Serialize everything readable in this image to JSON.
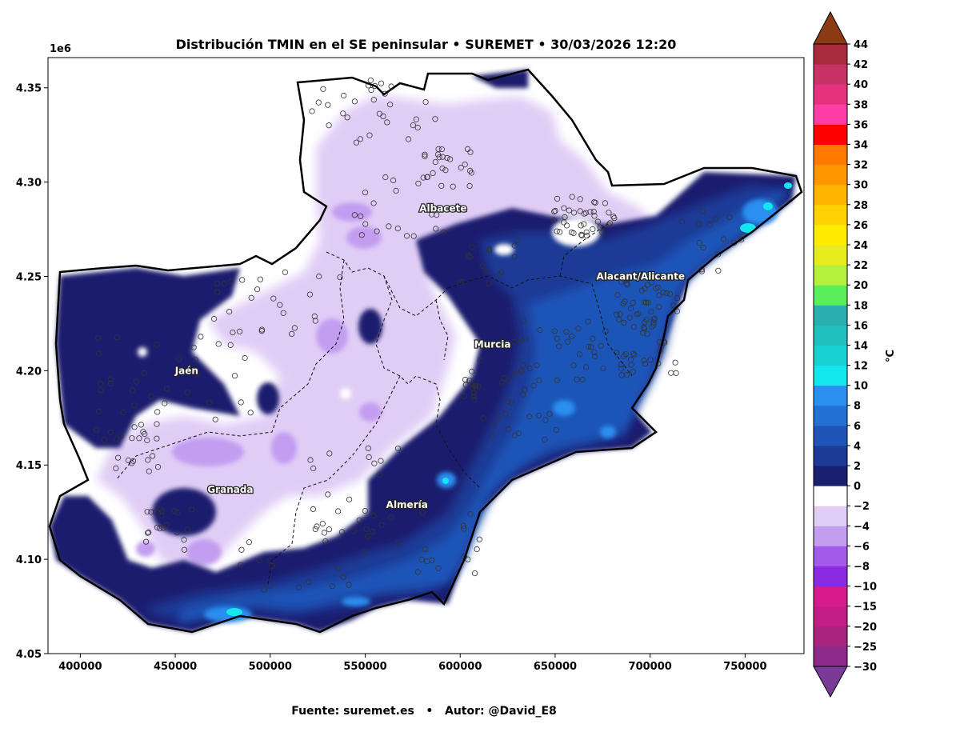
{
  "title": "Distribución TMIN en el SE peninsular • SUREMET • 30/03/2026 12:20",
  "footer": {
    "source": "Fuente: suremet.es",
    "separator": "•",
    "author": "Autor: @David_E8"
  },
  "y_offset_label": "1e6",
  "colorbar": {
    "unit": "°C",
    "levels": [
      -30,
      -25,
      -20,
      -15,
      -10,
      -8,
      -6,
      -4,
      -2,
      0,
      2,
      4,
      6,
      8,
      10,
      12,
      14,
      16,
      18,
      20,
      22,
      24,
      26,
      28,
      30,
      32,
      34,
      36,
      38,
      40,
      42,
      44
    ],
    "colors": [
      "#7a3a9a",
      "#8e2a8a",
      "#a8247e",
      "#c21c86",
      "#d81b8c",
      "#8a2be2",
      "#a35ae8",
      "#c39df0",
      "#e0cdf6",
      "#ffffff",
      "#1a1f6e",
      "#1c3a96",
      "#1f55b8",
      "#2272d6",
      "#2a8ff0",
      "#14e6ee",
      "#18d2d2",
      "#20c0c0",
      "#28b0b0",
      "#5aef5a",
      "#b4f03c",
      "#e6ec1e",
      "#ffeb00",
      "#ffd200",
      "#ffb400",
      "#ff9600",
      "#ff7800",
      "#ff0000",
      "#ff3ca6",
      "#e6327c",
      "#c83264",
      "#a82a3c",
      "#8c2a1c"
    ],
    "under_color": "#7a3a9a",
    "over_color": "#8c3a14"
  },
  "map": {
    "x_ticks": [
      400000,
      450000,
      500000,
      550000,
      600000,
      650000,
      700000,
      750000
    ],
    "y_ticks": [
      4.05,
      4.1,
      4.15,
      4.2,
      4.25,
      4.3,
      4.35
    ],
    "xlim": [
      383000,
      781000
    ],
    "ylim": [
      4050000,
      4366000
    ],
    "cities": [
      {
        "name": "Albacete",
        "x": 591000,
        "y": 4286000
      },
      {
        "name": "Jaén",
        "x": 456000,
        "y": 4200000
      },
      {
        "name": "Murcia",
        "x": 617000,
        "y": 4214000
      },
      {
        "name": "Alacant/Alicante",
        "x": 695000,
        "y": 4250000
      },
      {
        "name": "Granada",
        "x": 479000,
        "y": 4137000
      },
      {
        "name": "Almería",
        "x": 572000,
        "y": 4129000
      }
    ]
  }
}
